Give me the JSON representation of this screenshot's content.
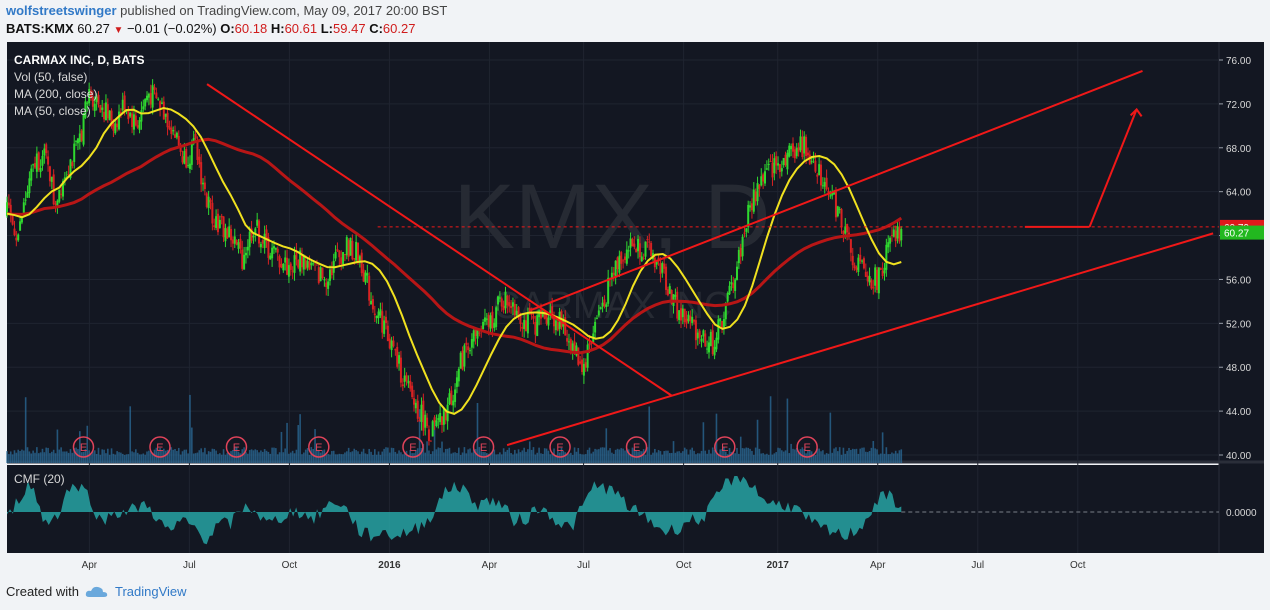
{
  "header": {
    "author": "wolfstreetswinger",
    "published": "published on TradingView.com, May 09, 2017 20:00 BST",
    "symbol": "BATS:KMX",
    "last": "60.27",
    "change": "−0.01 (−0.02%)",
    "o_label": "O:",
    "o_val": "60.18",
    "h_label": "H:",
    "h_val": "60.61",
    "l_label": "L:",
    "l_val": "59.47",
    "c_label": "C:",
    "c_val": "60.27"
  },
  "legend": {
    "title": "CARMAX INC, D, BATS",
    "vol": "Vol (50, false)",
    "ma200": "MA (200, close)",
    "ma50": "MA (50, close)",
    "cmf": "CMF (20)"
  },
  "watermark": {
    "big": "KMX, D",
    "small": "CARMAX INC"
  },
  "footer": {
    "created": "Created with",
    "brand": "TradingView"
  },
  "colors": {
    "up": "#2fd92f",
    "down": "#d82222",
    "ma50": "#f0e11f",
    "ma200": "#b81616",
    "trend": "#f01818",
    "cmf": "#27a3a3",
    "volume": "#2b6c9a"
  },
  "chart_data": {
    "type": "candlestick",
    "x_ticks": [
      "Apr",
      "Jul",
      "Oct",
      "2016",
      "Apr",
      "Jul",
      "Oct",
      "2017",
      "Apr",
      "Jul",
      "Oct"
    ],
    "y_ticks": [
      "76.00",
      "72.00",
      "68.00",
      "64.00",
      "60.00",
      "56.00",
      "52.00",
      "48.00",
      "44.00",
      "40.00"
    ],
    "ylim": [
      40,
      76
    ],
    "price_labels": [
      {
        "value": 60.79,
        "label": "60.79",
        "color": "#e0181b"
      },
      {
        "value": 60.27,
        "label": "60.27",
        "color": "#22b81f"
      }
    ],
    "earnings_markers": [
      "E",
      "E",
      "E",
      "E",
      "E",
      "E",
      "E",
      "E",
      "E",
      "E"
    ],
    "cmf_zero_label": "0.0000",
    "price_path": [
      [
        0,
        62
      ],
      [
        0.02,
        60
      ],
      [
        0.03,
        63
      ],
      [
        0.05,
        67
      ],
      [
        0.07,
        67
      ],
      [
        0.08,
        63
      ],
      [
        0.1,
        66
      ],
      [
        0.12,
        68
      ],
      [
        0.14,
        73
      ],
      [
        0.16,
        72
      ],
      [
        0.18,
        70
      ],
      [
        0.2,
        72
      ],
      [
        0.22,
        70
      ],
      [
        0.24,
        73
      ],
      [
        0.26,
        72
      ],
      [
        0.28,
        70
      ],
      [
        0.3,
        67
      ],
      [
        0.32,
        68
      ],
      [
        0.34,
        63
      ],
      [
        0.36,
        61
      ],
      [
        0.38,
        60
      ],
      [
        0.4,
        58
      ],
      [
        0.42,
        61
      ],
      [
        0.44,
        59
      ],
      [
        0.46,
        58
      ],
      [
        0.48,
        57
      ],
      [
        0.5,
        58
      ],
      [
        0.52,
        57
      ],
      [
        0.54,
        56
      ],
      [
        0.56,
        58
      ],
      [
        0.58,
        59
      ],
      [
        0.6,
        58
      ],
      [
        0.62,
        54
      ],
      [
        0.64,
        52
      ],
      [
        0.66,
        49
      ],
      [
        0.68,
        46
      ],
      [
        0.7,
        44
      ],
      [
        0.72,
        42
      ],
      [
        0.74,
        43
      ],
      [
        0.76,
        46
      ],
      [
        0.78,
        50
      ],
      [
        0.8,
        51
      ],
      [
        0.82,
        52
      ],
      [
        0.84,
        54
      ],
      [
        0.86,
        54
      ],
      [
        0.88,
        52
      ],
      [
        0.9,
        52
      ],
      [
        0.92,
        53
      ],
      [
        0.94,
        52
      ],
      [
        0.96,
        50
      ],
      [
        0.98,
        48
      ],
      [
        1.0,
        52
      ],
      [
        1.02,
        55
      ],
      [
        1.04,
        58
      ],
      [
        1.06,
        59
      ],
      [
        1.08,
        59
      ],
      [
        1.1,
        58
      ],
      [
        1.12,
        56
      ],
      [
        1.14,
        53
      ],
      [
        1.16,
        52
      ],
      [
        1.18,
        51
      ],
      [
        1.2,
        50
      ],
      [
        1.22,
        53
      ],
      [
        1.24,
        57
      ],
      [
        1.26,
        62
      ],
      [
        1.28,
        65
      ],
      [
        1.3,
        66
      ],
      [
        1.32,
        67
      ],
      [
        1.34,
        68
      ],
      [
        1.36,
        68
      ],
      [
        1.38,
        66
      ],
      [
        1.4,
        64
      ],
      [
        1.42,
        61
      ],
      [
        1.44,
        58
      ],
      [
        1.46,
        56
      ],
      [
        1.48,
        56
      ],
      [
        1.5,
        59
      ],
      [
        1.52,
        60.27
      ]
    ]
  }
}
